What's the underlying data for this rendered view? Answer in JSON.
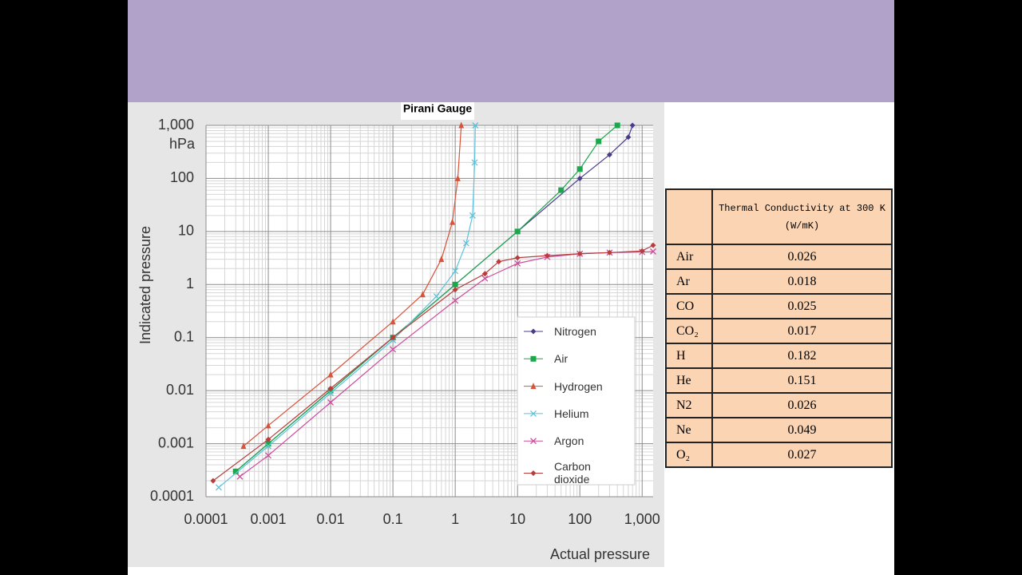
{
  "chart_data": {
    "type": "line",
    "title": "Pirani Gauge",
    "y_unit": "hPa",
    "x_label": "Actual pressure",
    "y_label": "Indicated pressure",
    "x_log": true,
    "y_log": true,
    "grid": true,
    "legend": "lower right",
    "xlim": [
      0.0001,
      1500
    ],
    "ylim": [
      0.0001,
      1000
    ],
    "xticks": [
      0.0001,
      0.001,
      0.01,
      0.1,
      1,
      10,
      100,
      {
        "value": 1000,
        "label": "1,000"
      }
    ],
    "yticks": [
      0.0001,
      0.001,
      0.01,
      0.1,
      1,
      10,
      100,
      {
        "value": 1000,
        "label": "1,000"
      }
    ],
    "series": [
      {
        "name": "Nitrogen",
        "color": "#4b3b8b",
        "marker": "diamond",
        "x": [
          0.0003,
          0.001,
          0.01,
          0.1,
          1,
          10,
          100,
          300,
          600,
          700
        ],
        "values": [
          0.0003,
          0.001,
          0.01,
          0.1,
          1,
          10,
          100,
          280,
          600,
          1000
        ]
      },
      {
        "name": "Air",
        "color": "#1aa84b",
        "marker": "square",
        "x": [
          0.0003,
          0.001,
          0.01,
          0.1,
          1,
          10,
          50,
          100,
          200,
          400
        ],
        "values": [
          0.0003,
          0.001,
          0.01,
          0.1,
          1,
          10,
          60,
          150,
          500,
          1000
        ]
      },
      {
        "name": "Hydrogen",
        "color": "#d9533a",
        "marker": "triangle",
        "x": [
          0.0004,
          0.001,
          0.01,
          0.1,
          0.3,
          0.6,
          0.9,
          1.1,
          1.25
        ],
        "values": [
          0.0009,
          0.0022,
          0.02,
          0.2,
          0.65,
          3,
          15,
          100,
          1000
        ]
      },
      {
        "name": "Helium",
        "color": "#5bc3dc",
        "marker": "x",
        "x": [
          0.00016,
          0.001,
          0.01,
          0.1,
          0.5,
          1,
          1.5,
          1.9,
          2.05,
          2.1
        ],
        "values": [
          0.00015,
          0.0009,
          0.009,
          0.09,
          0.6,
          1.8,
          6,
          20,
          200,
          1000
        ]
      },
      {
        "name": "Argon",
        "color": "#d14a9e",
        "marker": "x",
        "x": [
          0.00035,
          0.001,
          0.01,
          0.1,
          1,
          3,
          10,
          30,
          100,
          300,
          1000,
          1500
        ],
        "values": [
          0.00024,
          0.0006,
          0.006,
          0.06,
          0.5,
          1.3,
          2.5,
          3.3,
          3.8,
          4,
          4.1,
          4.2
        ]
      },
      {
        "name": "Carbon dioxide",
        "color": "#b83c3c",
        "marker": "diamond",
        "x": [
          0.00013,
          0.001,
          0.01,
          0.1,
          1,
          3,
          5,
          10,
          30,
          100,
          300,
          1000,
          1500
        ],
        "values": [
          0.0002,
          0.0012,
          0.011,
          0.1,
          0.8,
          1.6,
          2.7,
          3.2,
          3.5,
          3.8,
          4,
          4.3,
          5.5
        ]
      }
    ]
  },
  "table": {
    "header": [
      "Thermal Conductivity at 300 K",
      "(W/mK)"
    ],
    "rows": [
      [
        "Air",
        0.026
      ],
      [
        "Ar",
        0.018
      ],
      [
        "CO",
        0.025
      ],
      [
        "CO₂",
        0.017
      ],
      [
        "H",
        0.182
      ],
      [
        "He",
        0.151
      ],
      [
        "N2",
        0.026
      ],
      [
        "Ne",
        0.049
      ],
      [
        "O₂",
        0.027
      ]
    ]
  }
}
